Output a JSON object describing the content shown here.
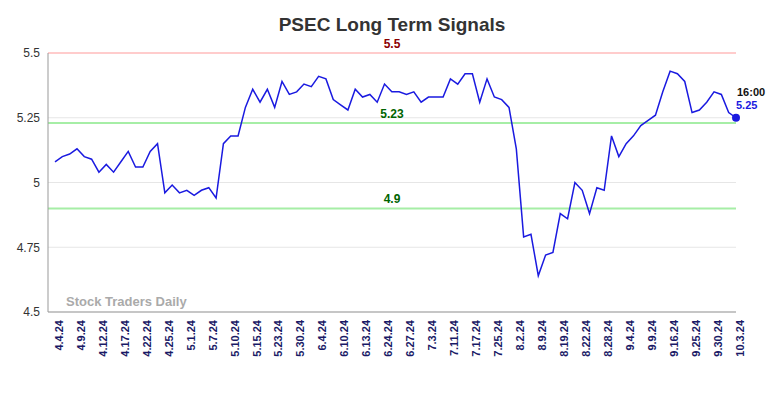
{
  "chart_data": {
    "type": "line",
    "title": "PSEC Long Term Signals",
    "watermark": "Stock Traders Daily",
    "categories": [
      "4.4.24",
      null,
      null,
      "4.9.24",
      null,
      null,
      "4.12.24",
      null,
      null,
      "4.17.24",
      null,
      null,
      "4.22.24",
      null,
      null,
      "4.25.24",
      null,
      null,
      "5.1.24",
      null,
      null,
      "5.7.24",
      null,
      null,
      "5.10.24",
      null,
      null,
      "5.15.24",
      null,
      null,
      "5.23.24",
      null,
      null,
      "5.30.24",
      null,
      null,
      "6.4.24",
      null,
      null,
      "6.10.24",
      null,
      null,
      "6.13.24",
      null,
      null,
      "6.24.24",
      null,
      null,
      "6.27.24",
      null,
      null,
      "7.3.24",
      null,
      null,
      "7.11.24",
      null,
      null,
      "7.17.24",
      null,
      null,
      "7.25.24",
      null,
      null,
      "8.2.24",
      null,
      null,
      "8.9.24",
      null,
      null,
      "8.19.24",
      null,
      null,
      "8.22.24",
      null,
      null,
      "8.28.24",
      null,
      null,
      "9.4.24",
      null,
      null,
      "9.9.24",
      null,
      null,
      "9.16.24",
      null,
      null,
      "9.25.24",
      null,
      null,
      "9.30.24",
      null,
      null,
      "10.3.24"
    ],
    "values": [
      5.08,
      5.1,
      5.11,
      5.13,
      5.1,
      5.09,
      5.04,
      5.07,
      5.04,
      5.08,
      5.12,
      5.06,
      5.06,
      5.12,
      5.15,
      4.96,
      4.99,
      4.96,
      4.97,
      4.95,
      4.97,
      4.98,
      4.94,
      5.15,
      5.18,
      5.18,
      5.29,
      5.36,
      5.31,
      5.36,
      5.29,
      5.39,
      5.34,
      5.35,
      5.38,
      5.37,
      5.41,
      5.4,
      5.32,
      5.3,
      5.28,
      5.36,
      5.33,
      5.34,
      5.31,
      5.38,
      5.35,
      5.35,
      5.34,
      5.35,
      5.31,
      5.33,
      5.33,
      5.33,
      5.4,
      5.38,
      5.42,
      5.42,
      5.31,
      5.4,
      5.33,
      5.32,
      5.29,
      5.13,
      4.79,
      4.8,
      4.64,
      4.72,
      4.73,
      4.88,
      4.86,
      5.0,
      4.97,
      4.88,
      4.98,
      4.97,
      5.18,
      5.1,
      5.15,
      5.18,
      5.22,
      5.24,
      5.26,
      5.35,
      5.43,
      5.42,
      5.39,
      5.27,
      5.28,
      5.31,
      5.35,
      5.34,
      5.27,
      5.25
    ],
    "color": "#1a1ae0",
    "ylim": [
      4.5,
      5.5
    ],
    "yticks": [
      4.5,
      4.75,
      5,
      5.25,
      5.5
    ],
    "grid": true,
    "reference_lines": [
      {
        "value": 5.5,
        "label": "5.5",
        "color": "#8b0000"
      },
      {
        "value": 5.23,
        "label": "5.23",
        "color": "#006400"
      },
      {
        "value": 4.9,
        "label": "4.9",
        "color": "#006400"
      }
    ],
    "end_label": {
      "time": "16:00",
      "value": 5.25
    }
  }
}
